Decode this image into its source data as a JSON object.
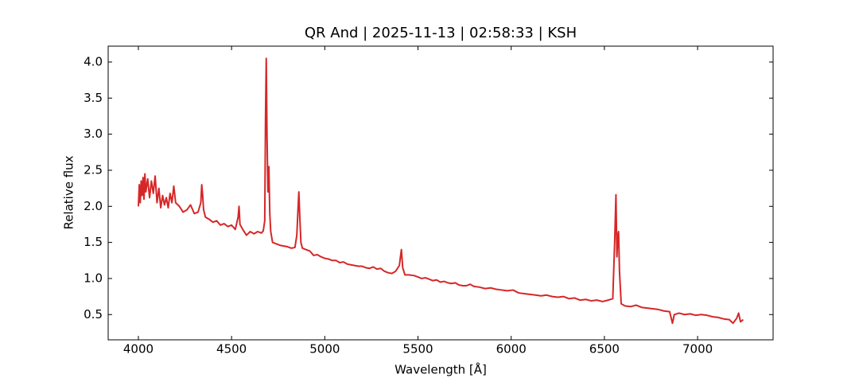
{
  "chart_data": {
    "type": "line",
    "title": "QR And | 2025-11-13 | 02:58:33 | KSH",
    "x_label": "Wavelength [Å]",
    "y_label": "Relative flux",
    "color": "#d62728",
    "x": [
      4000,
      4005,
      4010,
      4015,
      4020,
      4025,
      4030,
      4035,
      4040,
      4050,
      4060,
      4070,
      4080,
      4090,
      4100,
      4110,
      4120,
      4130,
      4140,
      4150,
      4160,
      4170,
      4180,
      4190,
      4200,
      4220,
      4240,
      4260,
      4280,
      4300,
      4320,
      4335,
      4340,
      4345,
      4350,
      4360,
      4380,
      4400,
      4420,
      4440,
      4460,
      4480,
      4500,
      4520,
      4535,
      4540,
      4545,
      4560,
      4580,
      4600,
      4620,
      4640,
      4660,
      4670,
      4678,
      4682,
      4686,
      4690,
      4695,
      4700,
      4705,
      4710,
      4720,
      4740,
      4760,
      4780,
      4800,
      4820,
      4840,
      4850,
      4858,
      4861,
      4866,
      4872,
      4880,
      4900,
      4920,
      4940,
      4960,
      4980,
      5000,
      5020,
      5040,
      5060,
      5080,
      5100,
      5120,
      5140,
      5160,
      5180,
      5200,
      5220,
      5240,
      5260,
      5280,
      5300,
      5320,
      5340,
      5360,
      5380,
      5400,
      5411,
      5418,
      5430,
      5450,
      5480,
      5500,
      5520,
      5540,
      5560,
      5580,
      5600,
      5620,
      5640,
      5660,
      5680,
      5700,
      5720,
      5740,
      5760,
      5780,
      5800,
      5830,
      5860,
      5890,
      5920,
      5950,
      5980,
      6010,
      6040,
      6070,
      6100,
      6130,
      6160,
      6190,
      6220,
      6250,
      6280,
      6310,
      6340,
      6370,
      6400,
      6430,
      6460,
      6490,
      6520,
      6545,
      6555,
      6562,
      6567,
      6572,
      6576,
      6581,
      6590,
      6610,
      6640,
      6670,
      6700,
      6730,
      6760,
      6790,
      6820,
      6850,
      6865,
      6875,
      6900,
      6930,
      6960,
      6990,
      7020,
      7050,
      7080,
      7110,
      7140,
      7170,
      7190,
      7210,
      7220,
      7230,
      7245
    ],
    "values": [
      2.0,
      2.3,
      2.05,
      2.35,
      2.15,
      2.4,
      2.1,
      2.45,
      2.2,
      2.38,
      2.12,
      2.35,
      2.18,
      2.42,
      2.05,
      2.25,
      1.98,
      2.15,
      2.02,
      2.12,
      1.98,
      2.18,
      2.05,
      2.28,
      2.05,
      2.0,
      1.92,
      1.95,
      2.02,
      1.9,
      1.92,
      2.05,
      2.3,
      2.15,
      1.95,
      1.85,
      1.82,
      1.78,
      1.8,
      1.74,
      1.76,
      1.72,
      1.74,
      1.68,
      1.85,
      2.0,
      1.75,
      1.68,
      1.6,
      1.65,
      1.62,
      1.65,
      1.63,
      1.66,
      1.8,
      3.2,
      4.05,
      3.0,
      2.2,
      2.55,
      1.9,
      1.65,
      1.5,
      1.48,
      1.46,
      1.45,
      1.44,
      1.42,
      1.43,
      1.6,
      2.05,
      2.2,
      1.85,
      1.5,
      1.42,
      1.4,
      1.38,
      1.32,
      1.33,
      1.3,
      1.28,
      1.27,
      1.25,
      1.25,
      1.22,
      1.23,
      1.2,
      1.19,
      1.18,
      1.17,
      1.17,
      1.15,
      1.14,
      1.16,
      1.13,
      1.14,
      1.1,
      1.08,
      1.07,
      1.1,
      1.18,
      1.4,
      1.15,
      1.05,
      1.05,
      1.04,
      1.02,
      1.0,
      1.01,
      0.99,
      0.97,
      0.98,
      0.95,
      0.96,
      0.94,
      0.93,
      0.94,
      0.91,
      0.9,
      0.9,
      0.92,
      0.89,
      0.88,
      0.86,
      0.87,
      0.85,
      0.84,
      0.83,
      0.84,
      0.8,
      0.79,
      0.78,
      0.77,
      0.76,
      0.77,
      0.75,
      0.74,
      0.75,
      0.72,
      0.73,
      0.7,
      0.71,
      0.69,
      0.7,
      0.68,
      0.7,
      0.72,
      1.5,
      2.16,
      1.3,
      1.6,
      1.65,
      1.1,
      0.65,
      0.62,
      0.61,
      0.63,
      0.6,
      0.59,
      0.58,
      0.57,
      0.55,
      0.54,
      0.38,
      0.5,
      0.52,
      0.5,
      0.51,
      0.49,
      0.5,
      0.49,
      0.47,
      0.46,
      0.44,
      0.43,
      0.38,
      0.45,
      0.52,
      0.4,
      0.43
    ],
    "xlim": [
      3838,
      7405
    ],
    "ylim": [
      0.15,
      4.22
    ],
    "xticks": [
      4000,
      4500,
      5000,
      5500,
      6000,
      6500,
      7000
    ],
    "yticks": [
      0.5,
      {
        "value": 1,
        "label": "1.0"
      },
      1.5,
      {
        "value": 2,
        "label": "2.0"
      },
      2.5,
      {
        "value": 3,
        "label": "3.0"
      },
      3.5,
      {
        "value": 4,
        "label": "4.0"
      }
    ],
    "grid": false
  }
}
